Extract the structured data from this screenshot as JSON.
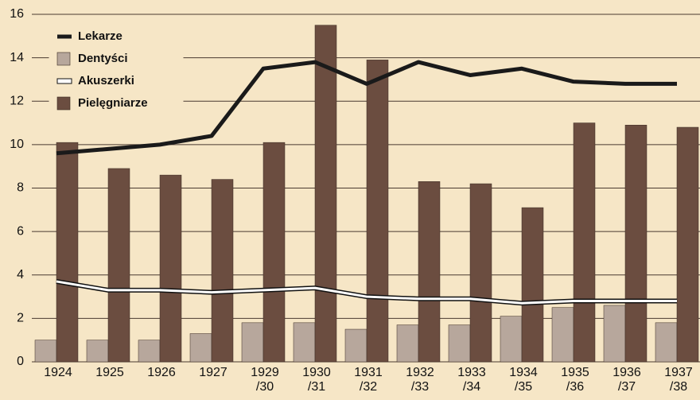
{
  "chart_data": {
    "type": "bar",
    "categories": [
      "1924",
      "1925",
      "1926",
      "1927",
      "1929\n/30",
      "1930\n/31",
      "1931\n/32",
      "1932\n/33",
      "1933\n/34",
      "1934\n/35",
      "1935\n/36",
      "1936\n/37",
      "1937\n/38"
    ],
    "series": [
      {
        "name": "Lekarze",
        "type": "line",
        "color": "#1a1a1a",
        "values": [
          9.6,
          9.8,
          10.0,
          10.4,
          13.5,
          13.8,
          12.8,
          13.8,
          13.2,
          13.5,
          12.9,
          12.8,
          12.8
        ]
      },
      {
        "name": "Dentyści",
        "type": "bar",
        "color": "#b7a79c",
        "values": [
          1.0,
          1.0,
          1.0,
          1.3,
          1.8,
          1.8,
          1.5,
          1.7,
          1.7,
          2.1,
          2.5,
          2.6,
          1.8
        ]
      },
      {
        "name": "Akuszerki",
        "type": "line",
        "color": "#ffffff",
        "values": [
          3.7,
          3.3,
          3.3,
          3.2,
          3.3,
          3.4,
          3.0,
          2.9,
          2.9,
          2.7,
          2.8,
          2.8,
          2.8
        ]
      },
      {
        "name": "Pielęgniarze",
        "type": "bar",
        "color": "#6b4d40",
        "values": [
          10.1,
          8.9,
          8.6,
          8.4,
          10.1,
          15.5,
          13.9,
          8.3,
          8.2,
          7.1,
          11.0,
          10.9,
          10.8
        ]
      }
    ],
    "ylim": [
      0,
      16
    ],
    "yticks": [
      0,
      2,
      4,
      6,
      8,
      10,
      12,
      14,
      16
    ],
    "grid": true
  }
}
